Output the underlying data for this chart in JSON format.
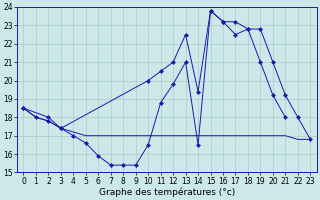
{
  "xlabel": "Graphe des températures (°c)",
  "bg_color": "#cce8e8",
  "grid_color": "#aacccc",
  "line_color": "#1a1aaa",
  "ylim": [
    15,
    24
  ],
  "xlim": [
    -0.5,
    23.5
  ],
  "yticks": [
    15,
    16,
    17,
    18,
    19,
    20,
    21,
    22,
    23,
    24
  ],
  "xticks": [
    0,
    1,
    2,
    3,
    4,
    5,
    6,
    7,
    8,
    9,
    10,
    11,
    12,
    13,
    14,
    15,
    16,
    17,
    18,
    19,
    20,
    21,
    22,
    23
  ],
  "series1_x": [
    0,
    1,
    2,
    3,
    4,
    5,
    6,
    7,
    8,
    9,
    10,
    11,
    12,
    13,
    14,
    15,
    16,
    17,
    18,
    19,
    20,
    21
  ],
  "series1_y": [
    18.5,
    18.0,
    17.8,
    17.4,
    17.0,
    16.6,
    15.9,
    15.4,
    15.4,
    15.4,
    16.5,
    18.8,
    19.8,
    21.0,
    16.5,
    23.8,
    23.2,
    23.2,
    22.8,
    21.0,
    19.2,
    18.0
  ],
  "series2_x": [
    0,
    2,
    3,
    10,
    11,
    12,
    13,
    14,
    15,
    16,
    17,
    18,
    19,
    20,
    21,
    22,
    23
  ],
  "series2_y": [
    18.5,
    18.0,
    17.4,
    20.0,
    20.5,
    21.0,
    22.5,
    19.4,
    23.8,
    23.2,
    22.5,
    22.8,
    22.8,
    21.0,
    19.2,
    18.0,
    16.8
  ],
  "series3_x": [
    0,
    1,
    2,
    3,
    4,
    5,
    6,
    7,
    8,
    9,
    10,
    11,
    12,
    13,
    14,
    15,
    16,
    17,
    18,
    19,
    20,
    21,
    22,
    23
  ],
  "series3_y": [
    18.5,
    18.0,
    17.8,
    17.4,
    17.2,
    17.0,
    17.0,
    17.0,
    17.0,
    17.0,
    17.0,
    17.0,
    17.0,
    17.0,
    17.0,
    17.0,
    17.0,
    17.0,
    17.0,
    17.0,
    17.0,
    17.0,
    16.8,
    16.8
  ],
  "tick_fontsize": 5.5,
  "xlabel_fontsize": 6.5,
  "markersize": 2.5
}
